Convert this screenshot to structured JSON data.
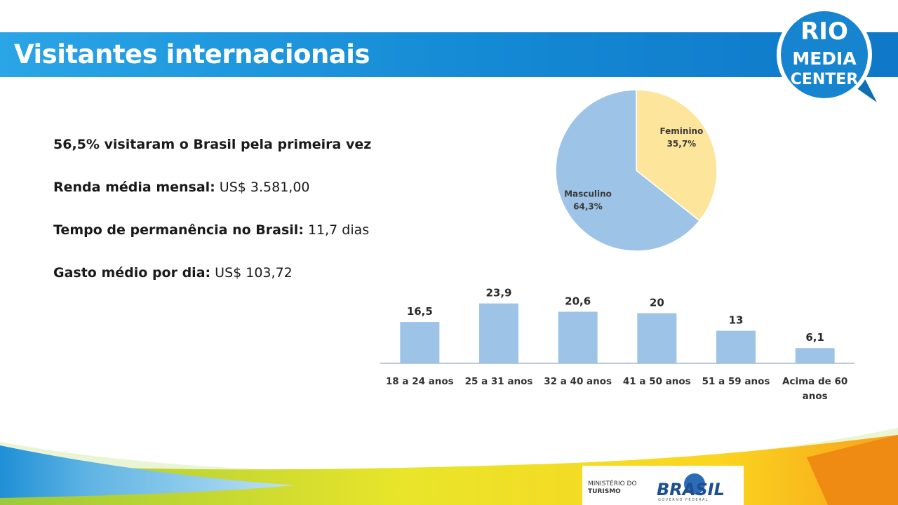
{
  "header": {
    "title": "Visitantes internacionais"
  },
  "logo": {
    "line1": "RIO",
    "line2": "MEDIA",
    "line3": "CENTER"
  },
  "stats": [
    {
      "label": "56,5% visitaram o Brasil pela primeira vez",
      "value": ""
    },
    {
      "label": "Renda média mensal:",
      "value": " US$ 3.581,00"
    },
    {
      "label": "Tempo de permanência no Brasil:",
      "value": " 11,7 dias"
    },
    {
      "label": "Gasto médio por dia:",
      "value": " US$ 103,72"
    }
  ],
  "chart_data": [
    {
      "type": "pie",
      "labels": [
        "Feminino",
        "Masculino"
      ],
      "values": [
        35.7,
        64.3
      ],
      "value_labels": [
        "35,7%",
        "64,3%"
      ],
      "colors": [
        "#fde59b",
        "#9dc3e6"
      ]
    },
    {
      "type": "bar",
      "categories": [
        "18 a 24 anos",
        "25 a 31 anos",
        "32 a 40 anos",
        "41 a 50 anos",
        "51 a 59 anos",
        "Acima de 60 anos"
      ],
      "values": [
        16.5,
        23.9,
        20.6,
        20,
        13,
        6.1
      ],
      "value_labels": [
        "16,5",
        "23,9",
        "20,6",
        "20",
        "13",
        "6,1"
      ],
      "color": "#9dc3e6"
    }
  ],
  "footer": {
    "ministry_line1": "MINISTÉRIO DO",
    "ministry_line2": "TURISMO",
    "brand": "BRASIL",
    "brand_sub": "GOVERNO FEDERAL"
  }
}
